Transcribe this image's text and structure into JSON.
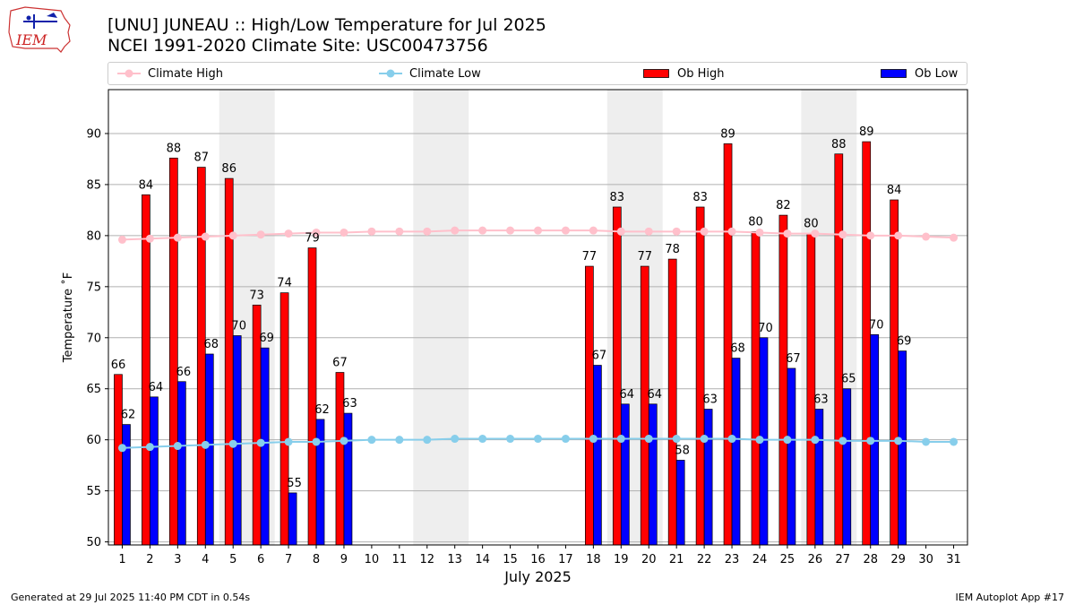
{
  "header": {
    "title_line1": "[UNU] JUNEAU :: High/Low Temperature for Jul 2025",
    "title_line2": "NCEI 1991-2020 Climate Site: USC00473756",
    "logo_text": "IEM"
  },
  "legend": {
    "items": [
      {
        "label": "Climate High",
        "kind": "line",
        "color": "#ffc0cb"
      },
      {
        "label": "Climate Low",
        "kind": "line",
        "color": "#87ceeb"
      },
      {
        "label": "Ob High",
        "kind": "bar",
        "color": "#ff0000"
      },
      {
        "label": "Ob Low",
        "kind": "bar",
        "color": "#0000ff"
      }
    ]
  },
  "footer": {
    "left": "Generated at 29 Jul 2025 11:40 PM CDT in 0.54s",
    "right": "IEM Autoplot App #17"
  },
  "chart_data": {
    "type": "bar",
    "title": "[UNU] JUNEAU :: High/Low Temperature for Jul 2025",
    "subtitle": "NCEI 1991-2020 Climate Site: USC00473756",
    "xlabel": "July 2025",
    "ylabel": "Temperature ˚F",
    "xlim": [
      0.5,
      31.5
    ],
    "ylim": [
      49.7,
      94.3
    ],
    "y_ticks": [
      50,
      55,
      60,
      65,
      70,
      75,
      80,
      85,
      90
    ],
    "grid": "y",
    "legend_position": "top",
    "days": [
      1,
      2,
      3,
      4,
      5,
      6,
      7,
      8,
      9,
      10,
      11,
      12,
      13,
      14,
      15,
      16,
      17,
      18,
      19,
      20,
      21,
      22,
      23,
      24,
      25,
      26,
      27,
      28,
      29,
      30,
      31
    ],
    "weekend_shading": [
      [
        5,
        6
      ],
      [
        12,
        13
      ],
      [
        19,
        20
      ],
      [
        26,
        27
      ]
    ],
    "shading_color": "#eeeeee",
    "series": [
      {
        "name": "Ob High",
        "kind": "bar",
        "color": "#ff0000",
        "values": [
          66.4,
          84,
          87.6,
          86.7,
          85.6,
          73.2,
          74.4,
          78.8,
          66.6,
          null,
          null,
          null,
          null,
          null,
          null,
          null,
          null,
          77,
          82.8,
          77,
          77.7,
          82.8,
          89,
          80.4,
          82,
          80.2,
          88,
          89.2,
          83.5,
          null,
          null
        ],
        "labels": [
          "66",
          "84",
          "88",
          "87",
          "86",
          "73",
          "74",
          "79",
          "67",
          "",
          "",
          "",
          "",
          "",
          "",
          "",
          "",
          "77",
          "83",
          "77",
          "78",
          "83",
          "89",
          "80",
          "82",
          "80",
          "88",
          "89",
          "84",
          "",
          ""
        ]
      },
      {
        "name": "Ob Low",
        "kind": "bar",
        "color": "#0000ff",
        "values": [
          61.5,
          64.2,
          65.7,
          68.4,
          70.2,
          69,
          54.8,
          62,
          62.6,
          null,
          null,
          null,
          null,
          null,
          null,
          null,
          null,
          67.3,
          63.5,
          63.5,
          58,
          63,
          68,
          70,
          67,
          63,
          65,
          70.3,
          68.7,
          null,
          null
        ],
        "labels": [
          "62",
          "64",
          "66",
          "68",
          "70",
          "69",
          "55",
          "62",
          "63",
          "",
          "",
          "",
          "",
          "",
          "",
          "",
          "",
          "67",
          "64",
          "64",
          "58",
          "63",
          "68",
          "70",
          "67",
          "63",
          "65",
          "70",
          "69",
          "",
          ""
        ]
      },
      {
        "name": "Climate High",
        "kind": "line",
        "color": "#ffc0cb",
        "values": [
          79.6,
          79.7,
          79.8,
          79.9,
          80,
          80.1,
          80.2,
          80.3,
          80.3,
          80.4,
          80.4,
          80.4,
          80.5,
          80.5,
          80.5,
          80.5,
          80.5,
          80.5,
          80.4,
          80.4,
          80.4,
          80.4,
          80.4,
          80.3,
          80.2,
          80.2,
          80.1,
          80,
          80,
          79.9,
          79.8
        ]
      },
      {
        "name": "Climate Low",
        "kind": "line",
        "color": "#87ceeb",
        "values": [
          59.2,
          59.3,
          59.4,
          59.5,
          59.6,
          59.7,
          59.8,
          59.8,
          59.9,
          60,
          60,
          60,
          60.1,
          60.1,
          60.1,
          60.1,
          60.1,
          60.1,
          60.1,
          60.1,
          60.1,
          60.1,
          60.1,
          60,
          60,
          60,
          59.9,
          59.9,
          59.9,
          59.8,
          59.8
        ]
      }
    ]
  }
}
